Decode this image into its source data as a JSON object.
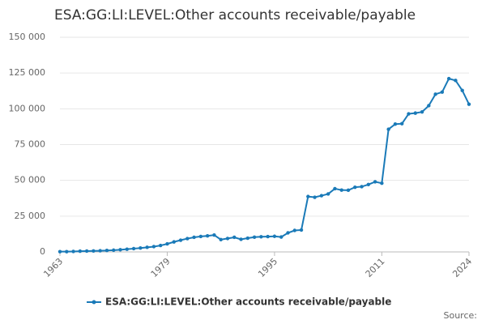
{
  "chart_data": {
    "type": "line",
    "title": "ESA:GG:LI:LEVEL:Other accounts receivable/payable",
    "source": "Source:",
    "x": [
      1963,
      1964,
      1965,
      1966,
      1967,
      1968,
      1969,
      1970,
      1971,
      1972,
      1973,
      1974,
      1975,
      1976,
      1977,
      1978,
      1979,
      1980,
      1981,
      1982,
      1983,
      1984,
      1985,
      1986,
      1987,
      1988,
      1989,
      1990,
      1991,
      1992,
      1993,
      1994,
      1995,
      1996,
      1997,
      1998,
      1999,
      2000,
      2001,
      2002,
      2003,
      2004,
      2005,
      2006,
      2007,
      2008,
      2009,
      2010,
      2011,
      2012,
      2013,
      2014,
      2015,
      2016,
      2017,
      2018,
      2019,
      2020,
      2021,
      2022,
      2023,
      2024
    ],
    "series": [
      {
        "name": "ESA:GG:LI:LEVEL:Other accounts receivable/payable",
        "color": "#1a7ab8",
        "values": [
          200,
          200,
          300,
          500,
          600,
          700,
          800,
          1000,
          1200,
          1500,
          1900,
          2300,
          2700,
          3200,
          3700,
          4500,
          5600,
          7000,
          8200,
          9300,
          10200,
          10800,
          11200,
          11800,
          8600,
          9400,
          10200,
          8800,
          9600,
          10300,
          10600,
          10700,
          10900,
          10400,
          13300,
          15000,
          15300,
          38700,
          38200,
          39300,
          40500,
          44200,
          43200,
          43100,
          45200,
          45600,
          47100,
          49000,
          48000,
          85700,
          89300,
          89600,
          96500,
          97000,
          97800,
          102200,
          110200,
          111700,
          121100,
          119800,
          112800,
          103200
        ]
      }
    ],
    "xlim": [
      1963,
      2024
    ],
    "xticks": [
      1963,
      1979,
      1995,
      2011,
      2024
    ],
    "ylim": [
      0,
      150000
    ],
    "yticks": [
      0,
      {
        "value": 25000,
        "label": "25 000"
      },
      {
        "value": 50000,
        "label": "50 000"
      },
      {
        "value": 75000,
        "label": "75 000"
      },
      {
        "value": 100000,
        "label": "100 000"
      },
      {
        "value": 125000,
        "label": "125 000"
      },
      {
        "value": 150000,
        "label": "150 000"
      }
    ],
    "grid": true
  }
}
